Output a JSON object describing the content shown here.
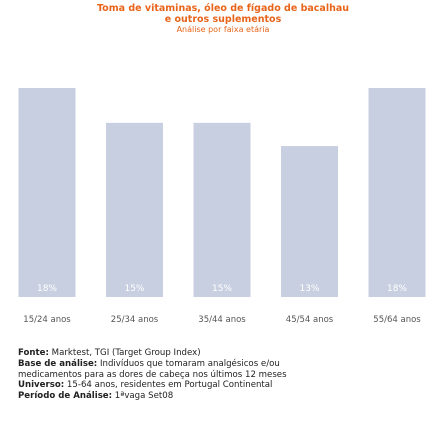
{
  "chart_data": {
    "type": "bar",
    "title_lines": [
      "Toma de vitaminas, óleo de fígado de bacalhau",
      "e outros suplementos"
    ],
    "subtitle": "Análise por faixa etária",
    "categories": [
      "15/24 anos",
      "25/34 anos",
      "35/44 anos",
      "45/54 anos",
      "55/64 anos"
    ],
    "values": [
      18,
      15,
      15,
      13,
      18
    ],
    "value_labels": [
      "18%",
      "15%",
      "15%",
      "13%",
      "18%"
    ],
    "unit": "%",
    "ylim": [
      0,
      18
    ],
    "grid": false,
    "legend": "none",
    "bar_color": "#c8cfe0",
    "label_color": "#ffffff",
    "title_color": "#e8641a"
  },
  "footer": {
    "source_key": "Fonte:",
    "source_value": " Marktest, TGI (Target Group Index)",
    "base_key": "Base de análise:",
    "base_value_1": " Indivíduos que tomaram analgésicos e/ou",
    "base_value_2": "medicamentos para as dores de cabeça nos últimos 12 meses",
    "universe_key": "Universo:",
    "universe_value": " 15-64 anos, residentes em Portugal Continental",
    "period_key": "Período de Análise:",
    "period_value": " 1ªvaga Set08"
  }
}
